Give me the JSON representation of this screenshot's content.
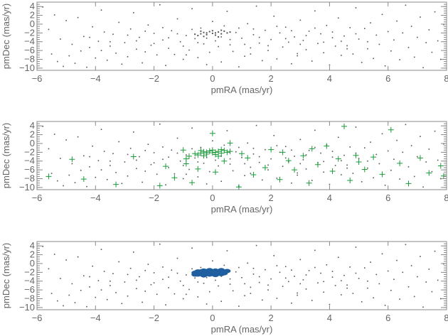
{
  "chart_data": {
    "type": "scatter",
    "grid": false,
    "colors": {
      "axis": "#8a8a8a",
      "background_points": "#555555",
      "green_crosses": "#1a9a3a",
      "blue_cluster": "#1f5fa0"
    },
    "shared_series": {
      "marker": "dot",
      "color": "#555555",
      "points": [
        [
          -5.8,
          3.9
        ],
        [
          -5.6,
          -1.2
        ],
        [
          -5.5,
          -6.8
        ],
        [
          -5.4,
          2.1
        ],
        [
          -5.3,
          -8.5
        ],
        [
          -5.2,
          -3.4
        ],
        [
          -5.1,
          -9.6
        ],
        [
          -5.0,
          0.8
        ],
        [
          -4.9,
          -7.2
        ],
        [
          -4.8,
          -4.6
        ],
        [
          -4.7,
          -8.9
        ],
        [
          -4.6,
          1.5
        ],
        [
          -4.5,
          -6.1
        ],
        [
          -4.4,
          -2.8
        ],
        [
          -4.3,
          -9.8
        ],
        [
          -4.2,
          -5.3
        ],
        [
          -4.1,
          -0.6
        ],
        [
          -4.0,
          -7.7
        ],
        [
          -3.9,
          -3.9
        ],
        [
          -3.8,
          3.2
        ],
        [
          -3.7,
          -1.8
        ],
        [
          -3.6,
          -8.2
        ],
        [
          -3.5,
          -5.0
        ],
        [
          -3.4,
          -2.3
        ],
        [
          -3.3,
          -6.6
        ],
        [
          -3.2,
          0.4
        ],
        [
          -3.1,
          -9.1
        ],
        [
          -3.0,
          -4.2
        ],
        [
          -2.9,
          -7.4
        ],
        [
          -2.8,
          -1.1
        ],
        [
          -2.7,
          2.6
        ],
        [
          -2.6,
          -5.7
        ],
        [
          -2.5,
          -3.0
        ],
        [
          -2.4,
          -8.8
        ],
        [
          -2.3,
          -6.3
        ],
        [
          -2.2,
          -0.2
        ],
        [
          -2.1,
          -4.8
        ],
        [
          -2.0,
          -2.1
        ],
        [
          -1.9,
          -7.0
        ],
        [
          -1.8,
          4.4
        ],
        [
          -1.7,
          -3.6
        ],
        [
          -1.6,
          -9.4
        ],
        [
          -1.5,
          -5.5
        ],
        [
          -1.4,
          -1.5
        ],
        [
          -1.3,
          -6.9
        ],
        [
          -1.2,
          1.2
        ],
        [
          -1.1,
          -4.0
        ],
        [
          -1.0,
          -8.0
        ],
        [
          -0.9,
          -2.6
        ],
        [
          -0.8,
          -5.9
        ],
        [
          -0.7,
          3.5
        ],
        [
          -0.6,
          -3.3
        ],
        [
          -0.5,
          -7.6
        ],
        [
          -0.4,
          -0.9
        ],
        [
          -0.3,
          -4.5
        ],
        [
          -0.2,
          -9.2
        ],
        [
          -0.1,
          -6.4
        ],
        [
          0.0,
          0.6
        ],
        [
          0.1,
          -3.8
        ],
        [
          0.2,
          -5.1
        ],
        [
          0.3,
          -8.6
        ],
        [
          0.4,
          -0.4
        ],
        [
          0.5,
          2.9
        ],
        [
          0.6,
          -4.7
        ],
        [
          0.7,
          -6.2
        ],
        [
          0.8,
          -1.9
        ],
        [
          0.9,
          -9.7
        ],
        [
          1.0,
          -3.2
        ],
        [
          1.1,
          -7.3
        ],
        [
          1.2,
          0.1
        ],
        [
          1.3,
          -5.4
        ],
        [
          1.4,
          -2.4
        ],
        [
          1.5,
          4.1
        ],
        [
          1.6,
          -4.3
        ],
        [
          1.7,
          -8.3
        ],
        [
          1.8,
          -1.4
        ],
        [
          1.9,
          -6.0
        ],
        [
          2.0,
          -3.5
        ],
        [
          2.1,
          1.8
        ],
        [
          2.2,
          -7.9
        ],
        [
          2.3,
          -2.0
        ],
        [
          2.4,
          -5.2
        ],
        [
          2.5,
          -0.7
        ],
        [
          2.6,
          -4.1
        ],
        [
          2.7,
          -9.0
        ],
        [
          2.8,
          -2.9
        ],
        [
          2.9,
          -6.7
        ],
        [
          3.0,
          0.9
        ],
        [
          3.1,
          -3.7
        ],
        [
          3.2,
          -5.8
        ],
        [
          3.3,
          -1.6
        ],
        [
          3.4,
          -8.4
        ],
        [
          3.5,
          3.0
        ],
        [
          3.6,
          -4.4
        ],
        [
          3.7,
          -2.2
        ],
        [
          3.8,
          -6.5
        ],
        [
          3.9,
          -0.3
        ],
        [
          4.0,
          -9.3
        ],
        [
          4.1,
          -3.1
        ],
        [
          4.2,
          -5.0
        ],
        [
          4.3,
          1.4
        ],
        [
          4.4,
          -7.1
        ],
        [
          4.5,
          -2.7
        ],
        [
          4.6,
          -4.9
        ],
        [
          4.7,
          -0.8
        ],
        [
          4.8,
          -6.8
        ],
        [
          4.9,
          3.7
        ],
        [
          5.0,
          -3.4
        ],
        [
          5.1,
          -8.7
        ],
        [
          5.2,
          -1.0
        ],
        [
          5.3,
          -5.6
        ],
        [
          5.4,
          0.3
        ],
        [
          5.5,
          -7.8
        ],
        [
          5.6,
          -2.5
        ],
        [
          5.7,
          -4.6
        ],
        [
          5.8,
          2.2
        ],
        [
          5.9,
          -9.5
        ],
        [
          6.0,
          -1.7
        ],
        [
          6.1,
          -6.1
        ],
        [
          6.2,
          -3.6
        ],
        [
          6.3,
          0.7
        ],
        [
          6.4,
          -8.1
        ],
        [
          6.5,
          -2.0
        ],
        [
          6.6,
          4.3
        ],
        [
          6.7,
          -5.3
        ],
        [
          6.8,
          -0.5
        ],
        [
          6.9,
          -7.5
        ],
        [
          7.0,
          -3.0
        ],
        [
          7.1,
          1.6
        ],
        [
          7.2,
          -9.9
        ],
        [
          7.3,
          -4.2
        ],
        [
          7.4,
          -1.3
        ],
        [
          7.5,
          -6.4
        ],
        [
          7.6,
          2.8
        ],
        [
          7.7,
          -3.8
        ],
        [
          7.8,
          -8.0
        ],
        [
          7.9,
          -0.1
        ],
        [
          -2.9,
          -2.5
        ],
        [
          -2.6,
          -3.8
        ],
        [
          -2.3,
          -1.6
        ],
        [
          -2.0,
          -4.4
        ],
        [
          -1.7,
          -0.8
        ],
        [
          -1.5,
          -3.1
        ],
        [
          -1.2,
          -2.2
        ],
        [
          -1.0,
          -5.0
        ],
        [
          -0.7,
          -1.2
        ],
        [
          -0.5,
          -4.2
        ],
        [
          -0.2,
          -3.2
        ],
        [
          0.3,
          -2.9
        ],
        [
          0.6,
          -3.5
        ],
        [
          0.9,
          -0.9
        ],
        [
          1.1,
          -4.6
        ],
        [
          1.4,
          -1.1
        ],
        [
          1.6,
          -3.0
        ],
        [
          1.9,
          -4.9
        ],
        [
          2.2,
          -0.5
        ],
        [
          2.5,
          -3.3
        ],
        [
          2.7,
          -1.5
        ],
        [
          3.0,
          -4.6
        ],
        [
          3.2,
          -2.6
        ],
        [
          3.5,
          -0.9
        ],
        [
          3.8,
          -4.1
        ],
        [
          4.1,
          -1.8
        ],
        [
          4.4,
          -3.9
        ],
        [
          4.6,
          -5.6
        ],
        [
          4.9,
          -2.2
        ],
        [
          5.3,
          -4.0
        ],
        [
          -3.5,
          -4.0
        ],
        [
          -3.8,
          -6.0
        ],
        [
          -4.2,
          -3.0
        ],
        [
          -0.9,
          -7.0
        ],
        [
          1.3,
          -6.8
        ],
        [
          2.9,
          -7.2
        ]
      ]
    },
    "cluster_points": [
      [
        -0.5,
        -2.6
      ],
      [
        -0.4,
        -2.2
      ],
      [
        -0.3,
        -1.9
      ],
      [
        -0.2,
        -2.4
      ],
      [
        -0.1,
        -1.7
      ],
      [
        0.0,
        -2.1
      ],
      [
        0.1,
        -2.5
      ],
      [
        0.2,
        -1.8
      ],
      [
        0.3,
        -2.2
      ],
      [
        0.4,
        -1.6
      ],
      [
        -0.3,
        -2.8
      ],
      [
        0.0,
        -1.5
      ],
      [
        0.2,
        -2.9
      ],
      [
        -0.6,
        -2.3
      ],
      [
        0.5,
        -2.0
      ],
      [
        -0.2,
        -2.0
      ],
      [
        0.1,
        -2.0
      ],
      [
        0.3,
        -1.4
      ],
      [
        -0.4,
        -1.6
      ],
      [
        0.6,
        -1.8
      ]
    ],
    "panels": [
      {
        "xlabel": "pmRA (mas/yr)",
        "ylabel": "pmDec (mas/yr)",
        "xlim": [
          -6,
          8
        ],
        "ylim": [
          -10.5,
          5
        ],
        "xticks": [
          "-6",
          "-4",
          "-2",
          "0",
          "2",
          "4",
          "6",
          "8"
        ],
        "yticks": [
          "4",
          "2",
          "0",
          "-2",
          "-4",
          "-6",
          "-8",
          "-10"
        ],
        "overlays": [
          {
            "marker": "dot",
            "color": "#555555",
            "use": "cluster_points"
          }
        ]
      },
      {
        "xlabel": "pmRA (mas/yr)",
        "ylabel": "pmDec (mas/yr)",
        "xlim": [
          -6,
          8
        ],
        "ylim": [
          -10.5,
          5
        ],
        "xticks": [
          "-6",
          "-4",
          "-2",
          "0",
          "2",
          "4",
          "6",
          "8"
        ],
        "yticks": [
          "4",
          "2",
          "0",
          "-2",
          "-4",
          "-6",
          "-8",
          "-10"
        ],
        "overlays": [
          {
            "marker": "cross",
            "color": "#1a9a3a",
            "use": "cluster_points"
          },
          {
            "marker": "cross",
            "color": "#1a9a3a",
            "points": [
              [
                -5.6,
                -7.5
              ],
              [
                -4.8,
                -3.6
              ],
              [
                -4.4,
                -8.1
              ],
              [
                -3.3,
                -9.3
              ],
              [
                -2.7,
                -3.0
              ],
              [
                -1.8,
                -9.6
              ],
              [
                -1.6,
                -5.2
              ],
              [
                -1.3,
                -7.8
              ],
              [
                -1.0,
                -1.5
              ],
              [
                -0.9,
                -4.6
              ],
              [
                -0.7,
                -8.9
              ],
              [
                -0.5,
                -5.8
              ],
              [
                0.0,
                2.3
              ],
              [
                0.1,
                -6.5
              ],
              [
                0.4,
                -4.0
              ],
              [
                0.6,
                0.1
              ],
              [
                0.9,
                -9.9
              ],
              [
                1.2,
                -3.3
              ],
              [
                1.4,
                -7.1
              ],
              [
                1.8,
                -5.5
              ],
              [
                2.0,
                -1.4
              ],
              [
                2.3,
                -8.2
              ],
              [
                2.6,
                -3.9
              ],
              [
                2.8,
                -6.0
              ],
              [
                3.1,
                -2.8
              ],
              [
                3.3,
                -9.0
              ],
              [
                3.6,
                -4.8
              ],
              [
                3.9,
                -0.6
              ],
              [
                4.1,
                -6.3
              ],
              [
                4.3,
                -3.5
              ],
              [
                4.5,
                3.9
              ],
              [
                4.7,
                -8.4
              ],
              [
                4.9,
                -2.7
              ],
              [
                5.2,
                -5.9
              ],
              [
                5.5,
                -3.1
              ],
              [
                5.8,
                -7.0
              ],
              [
                6.1,
                3.1
              ],
              [
                6.4,
                -4.5
              ],
              [
                6.7,
                -9.1
              ],
              [
                7.1,
                -3.3
              ],
              [
                7.4,
                -6.7
              ],
              [
                7.8,
                -5.1
              ],
              [
                7.9,
                -7.4
              ],
              [
                2.4,
                -2.0
              ],
              [
                1.0,
                -2.3
              ],
              [
                -0.8,
                -2.9
              ],
              [
                3.4,
                -1.2
              ],
              [
                5.0,
                -4.2
              ],
              [
                -0.9,
                -3.5
              ]
            ]
          }
        ]
      },
      {
        "xlabel": "pmRA (mas/yr)",
        "ylabel": "pmDec (mas/yr)",
        "xlim": [
          -6,
          8
        ],
        "ylim": [
          -10.5,
          5
        ],
        "xticks": [
          "-6",
          "-4",
          "-2",
          "0",
          "2",
          "4",
          "6",
          "8"
        ],
        "yticks": [
          "4",
          "2",
          "0",
          "-2",
          "-4",
          "-6",
          "-8",
          "-10"
        ],
        "overlays": [
          {
            "marker": "blob",
            "color": "#1f5fa0",
            "points": [
              [
                -0.6,
                -2.1
              ],
              [
                -0.5,
                -2.5
              ],
              [
                -0.5,
                -1.8
              ],
              [
                -0.4,
                -2.2
              ],
              [
                -0.3,
                -2.7
              ],
              [
                -0.3,
                -1.6
              ],
              [
                -0.2,
                -2.0
              ],
              [
                -0.1,
                -2.5
              ],
              [
                -0.1,
                -1.5
              ],
              [
                0.0,
                -2.1
              ],
              [
                0.1,
                -2.6
              ],
              [
                0.1,
                -1.6
              ],
              [
                0.2,
                -2.0
              ],
              [
                0.3,
                -2.4
              ],
              [
                0.3,
                -1.5
              ],
              [
                0.4,
                -1.9
              ],
              [
                0.5,
                -1.7
              ],
              [
                -0.4,
                -1.8
              ],
              [
                0.0,
                -1.8
              ],
              [
                -0.2,
                -2.4
              ],
              [
                0.2,
                -2.3
              ],
              [
                0.4,
                -2.2
              ],
              [
                -0.6,
                -2.5
              ]
            ]
          }
        ]
      }
    ]
  }
}
